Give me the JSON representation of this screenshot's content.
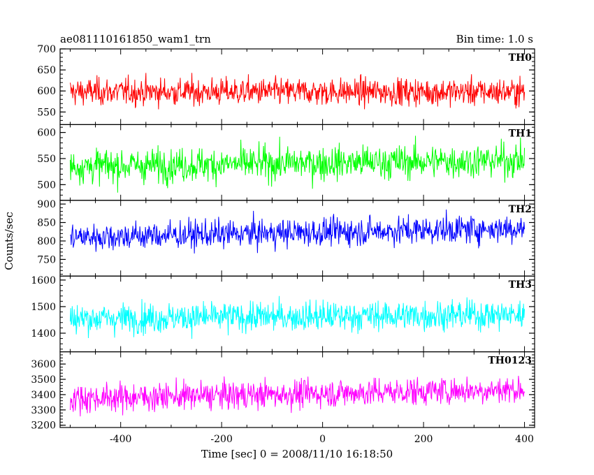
{
  "header": {
    "title": "ae081110161850_wam1_trn",
    "bin_time": "Bin time: 1.0 s"
  },
  "axes": {
    "ylabel": "Counts/sec",
    "xlabel": "Time [sec] 0 = 2008/11/10 16:18:50",
    "xlim": [
      -520,
      420
    ],
    "xticks": [
      -400,
      -200,
      0,
      200,
      400
    ]
  },
  "chart_data": {
    "type": "line",
    "x_start": -500,
    "x_end": 400,
    "x_step": 1,
    "series": [
      {
        "name": "TH0",
        "color": "#ff0000",
        "ylim": [
          520,
          700
        ],
        "yticks": [
          550,
          600,
          650,
          700
        ],
        "mean": 598,
        "noise": 23,
        "trend": 0
      },
      {
        "name": "TH1",
        "color": "#00ff00",
        "ylim": [
          470,
          615
        ],
        "yticks": [
          500,
          550,
          600
        ],
        "mean": 535,
        "noise": 23,
        "trend": 12
      },
      {
        "name": "TH2",
        "color": "#0000ff",
        "ylim": [
          705,
          910
        ],
        "yticks": [
          750,
          800,
          850,
          900
        ],
        "mean": 810,
        "noise": 27,
        "trend": 25
      },
      {
        "name": "TH3",
        "color": "#00ffff",
        "ylim": [
          1330,
          1615
        ],
        "yticks": [
          1400,
          1500,
          1600
        ],
        "mean": 1455,
        "noise": 40,
        "trend": 15
      },
      {
        "name": "TH0123",
        "color": "#ff00ff",
        "ylim": [
          3185,
          3680
        ],
        "yticks": [
          3200,
          3300,
          3400,
          3500,
          3600
        ],
        "mean": 3375,
        "noise": 65,
        "trend": 60
      }
    ]
  }
}
